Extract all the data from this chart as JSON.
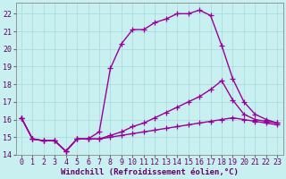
{
  "xlabel": "Windchill (Refroidissement éolien,°C)",
  "background_color": "#c8f0f0",
  "grid_color": "#a8d8d8",
  "line_color": "#990099",
  "ylim": [
    14,
    22.6
  ],
  "xlim": [
    -0.5,
    23.5
  ],
  "yticks": [
    14,
    15,
    16,
    17,
    18,
    19,
    20,
    21,
    22
  ],
  "xticks": [
    0,
    1,
    2,
    3,
    4,
    5,
    6,
    7,
    8,
    9,
    10,
    11,
    12,
    13,
    14,
    15,
    16,
    17,
    18,
    19,
    20,
    21,
    22,
    23
  ],
  "series": [
    {
      "x": [
        0,
        1,
        2,
        3,
        4,
        5,
        6,
        7,
        8,
        9,
        10,
        11,
        12,
        13,
        14,
        15,
        16,
        17,
        18,
        19,
        20,
        21,
        22,
        23
      ],
      "y": [
        16.1,
        14.9,
        14.8,
        14.8,
        14.2,
        14.9,
        14.9,
        15.3,
        18.9,
        20.3,
        21.1,
        21.1,
        21.5,
        21.7,
        22.0,
        22.0,
        22.2,
        21.9,
        20.2,
        18.3,
        17.0,
        16.3,
        16.0,
        15.8
      ],
      "linestyle": "-"
    },
    {
      "x": [
        0,
        1,
        2,
        3,
        4,
        5,
        6,
        7,
        8,
        9,
        10,
        11,
        12,
        13,
        14,
        15,
        16,
        17,
        18,
        19,
        20,
        21,
        22,
        23
      ],
      "y": [
        16.1,
        14.9,
        14.8,
        14.8,
        14.2,
        14.9,
        14.9,
        14.9,
        15.1,
        15.3,
        15.6,
        15.8,
        16.1,
        16.4,
        16.7,
        17.0,
        17.3,
        17.7,
        18.2,
        17.1,
        16.3,
        16.0,
        15.9,
        15.8
      ],
      "linestyle": "-"
    },
    {
      "x": [
        0,
        1,
        2,
        3,
        4,
        5,
        6,
        7,
        8,
        9,
        10,
        11,
        12,
        13,
        14,
        15,
        16,
        17,
        18,
        19,
        20,
        21,
        22,
        23
      ],
      "y": [
        16.1,
        14.9,
        14.8,
        14.8,
        14.2,
        14.9,
        14.9,
        14.9,
        15.0,
        15.1,
        15.2,
        15.3,
        15.4,
        15.5,
        15.6,
        15.7,
        15.8,
        15.9,
        16.0,
        16.1,
        16.0,
        15.9,
        15.8,
        15.7
      ],
      "linestyle": "-"
    }
  ],
  "marker": "+",
  "markersize": 4,
  "linewidth": 1.0,
  "fontsize_label": 6.5,
  "fontsize_tick": 6.0
}
